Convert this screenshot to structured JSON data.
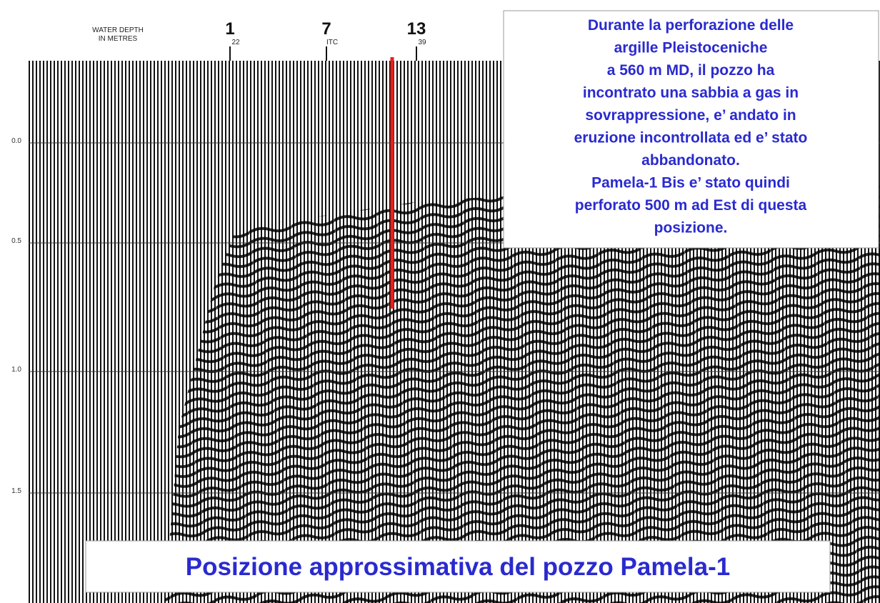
{
  "header": {
    "water_depth": [
      "WATER DEPTH",
      "IN METRES"
    ],
    "wells": [
      {
        "number": "1",
        "depth": "22"
      },
      {
        "number": "7",
        "depth": "ITC"
      },
      {
        "number": "13",
        "depth": "39"
      }
    ]
  },
  "axis_labels": [
    "0.0",
    "0.5",
    "1.0",
    "1.5"
  ],
  "annotation": {
    "lines": [
      "Durante la perforazione delle",
      "argille Pleistoceniche",
      "a 560 m MD, il pozzo ha",
      "incontrato una sabbia a gas in",
      "sovrappressione, e’ andato in",
      "eruzione incontrollata ed e’ stato",
      "abbandonato.",
      "Pamela-1 Bis e’ stato quindi",
      "perforato 500 m ad Est di questa",
      "posizione."
    ]
  },
  "caption": "Posizione approssimativa del pozzo Pamela-1"
}
